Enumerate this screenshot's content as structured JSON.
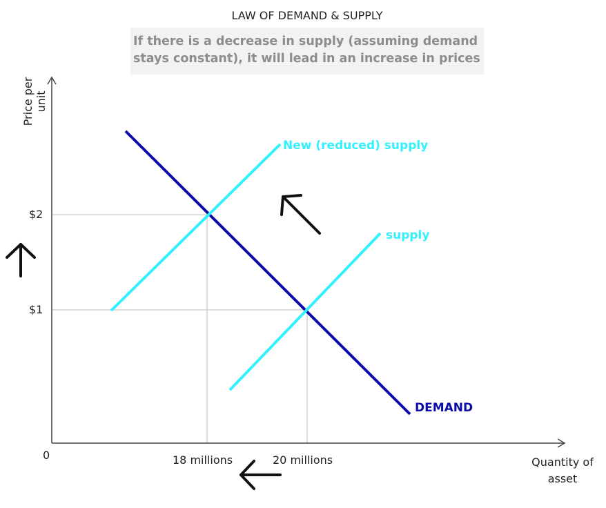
{
  "title": "LAW OF DEMAND & SUPPLY",
  "note": {
    "line1": "If there is a decrease in supply (assuming demand",
    "line2": "stays constant), it will lead in an increase in prices"
  },
  "axes": {
    "ylabel_line1": "Price per",
    "ylabel_line2": "unit",
    "xlabel_line1": "Quantity of",
    "xlabel_line2": "asset",
    "origin": "0",
    "price_ticks": [
      "$1",
      "$2"
    ],
    "quantity_ticks": [
      "18 millions",
      "20 millions"
    ]
  },
  "lines": {
    "demand_label": "DEMAND",
    "supply_label": "supply",
    "new_supply_label": "New (reduced) supply"
  },
  "colors": {
    "demand": "#0a0aa8",
    "supply": "#33f0ff",
    "axis": "#444444",
    "guide": "#bdbdbd",
    "arrow": "#111111"
  },
  "icons": [
    "up-arrow-icon",
    "up-left-arrow-icon",
    "left-arrow-icon"
  ]
}
